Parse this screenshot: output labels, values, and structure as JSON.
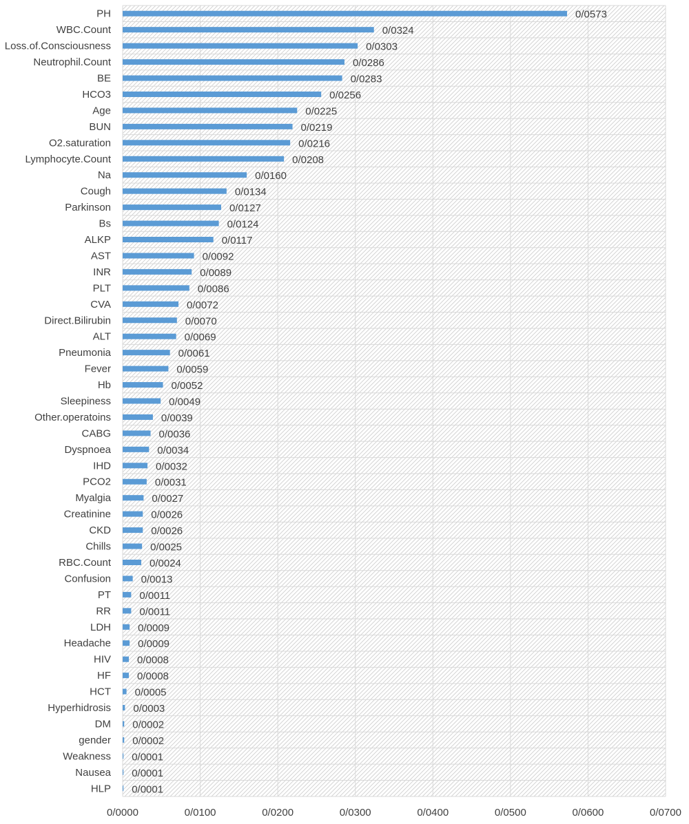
{
  "colors": {
    "bar": "#5B9BD5",
    "grid": "#d9d9d9",
    "hatch": "#d4d4d4",
    "text": "#404040"
  },
  "chart_data": {
    "type": "bar",
    "orientation": "horizontal",
    "title": "",
    "xlabel": "",
    "ylabel": "",
    "xlim": [
      0,
      0.07
    ],
    "grid": true,
    "legend": "none",
    "x_ticks": [
      0,
      0.01,
      0.02,
      0.03,
      0.04,
      0.05,
      0.06,
      0.07
    ],
    "x_tick_labels": [
      "0/0000",
      "0/0100",
      "0/0200",
      "0/0300",
      "0/0400",
      "0/0500",
      "0/0600",
      "0/0700"
    ],
    "categories": [
      "PH",
      "WBC.Count",
      "Loss.of.Consciousness",
      "Neutrophil.Count",
      "BE",
      "HCO3",
      "Age",
      "BUN",
      "O2.saturation",
      "Lymphocyte.Count",
      "Na",
      "Cough",
      "Parkinson",
      "Bs",
      "ALKP",
      "AST",
      "INR",
      "PLT",
      "CVA",
      "Direct.Bilirubin",
      "ALT",
      "Pneumonia",
      "Fever",
      "Hb",
      "Sleepiness",
      "Other.operatoins",
      "CABG",
      "Dyspnoea",
      "IHD",
      "PCO2",
      "Myalgia",
      "Creatinine",
      "CKD",
      "Chills",
      "RBC.Count",
      "Confusion",
      "PT",
      "RR",
      "LDH",
      "Headache",
      "HIV",
      "HF",
      "HCT",
      "Hyperhidrosis",
      "DM",
      "gender",
      "Weakness",
      "Nausea",
      "HLP"
    ],
    "values": [
      0.0573,
      0.0324,
      0.0303,
      0.0286,
      0.0283,
      0.0256,
      0.0225,
      0.0219,
      0.0216,
      0.0208,
      0.016,
      0.0134,
      0.0127,
      0.0124,
      0.0117,
      0.0092,
      0.0089,
      0.0086,
      0.0072,
      0.007,
      0.0069,
      0.0061,
      0.0059,
      0.0052,
      0.0049,
      0.0039,
      0.0036,
      0.0034,
      0.0032,
      0.0031,
      0.0027,
      0.0026,
      0.0026,
      0.0025,
      0.0024,
      0.0013,
      0.0011,
      0.0011,
      0.0009,
      0.0009,
      0.0008,
      0.0008,
      0.0005,
      0.0003,
      0.0002,
      0.0002,
      0.0001,
      0.0001,
      0.0001
    ],
    "value_labels": [
      "0/0573",
      "0/0324",
      "0/0303",
      "0/0286",
      "0/0283",
      "0/0256",
      "0/0225",
      "0/0219",
      "0/0216",
      "0/0208",
      "0/0160",
      "0/0134",
      "0/0127",
      "0/0124",
      "0/0117",
      "0/0092",
      "0/0089",
      "0/0086",
      "0/0072",
      "0/0070",
      "0/0069",
      "0/0061",
      "0/0059",
      "0/0052",
      "0/0049",
      "0/0039",
      "0/0036",
      "0/0034",
      "0/0032",
      "0/0031",
      "0/0027",
      "0/0026",
      "0/0026",
      "0/0025",
      "0/0024",
      "0/0013",
      "0/0011",
      "0/0011",
      "0/0009",
      "0/0009",
      "0/0008",
      "0/0008",
      "0/0005",
      "0/0003",
      "0/0002",
      "0/0002",
      "0/0001",
      "0/0001",
      "0/0001"
    ]
  }
}
